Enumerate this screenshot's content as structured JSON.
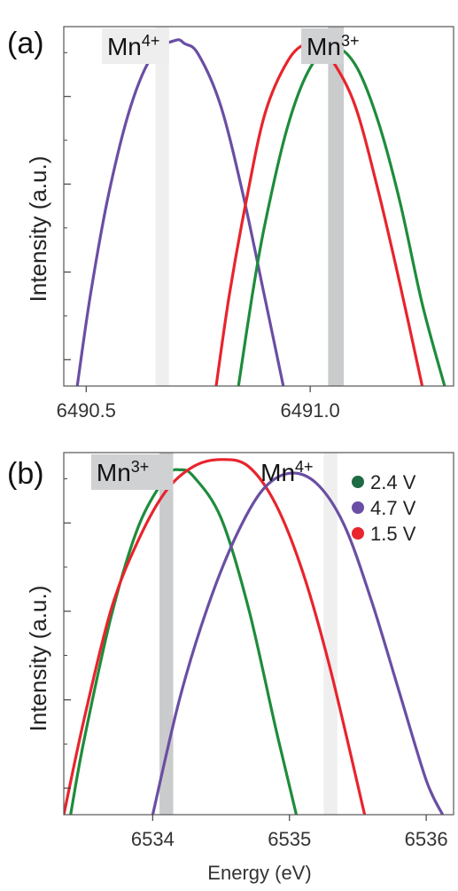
{
  "figure": {
    "xlabel": "Energy (eV)"
  },
  "chart_data": [
    {
      "type": "line",
      "panel_label": "(a)",
      "xlabel": "",
      "ylabel": "Intensity (a.u.)",
      "xlim": [
        6490.45,
        6491.32
      ],
      "ylim": [
        0,
        1.05
      ],
      "xticks": [
        6490.5,
        6491.0
      ],
      "xtick_labels": [
        "6490.5",
        "6491.0"
      ],
      "yticks": [
        0.077,
        0.333,
        0.59,
        0.846
      ],
      "yticks_minor": [
        0.205,
        0.462,
        0.718,
        0.974
      ],
      "legend": null,
      "bands": [
        {
          "x0": 6490.655,
          "x1": 6490.685,
          "color": "#efefef",
          "label": "Mn",
          "sup": "4+",
          "label_x": 6490.535,
          "label_bg": "#eeeeee"
        },
        {
          "x0": 6491.04,
          "x1": 6491.075,
          "color": "#c9cbcd",
          "label": "Mn",
          "sup": "3+",
          "label_x": 6490.98,
          "label_bg": "#cfd1d3"
        }
      ],
      "series": [
        {
          "color": "#6a4ea3",
          "x": [
            6490.48,
            6490.51,
            6490.55,
            6490.6,
            6490.65,
            6490.7,
            6490.72,
            6490.75,
            6490.8,
            6490.85,
            6490.9,
            6490.94
          ],
          "y": [
            0.0,
            0.27,
            0.56,
            0.82,
            0.97,
            1.01,
            1.0,
            0.97,
            0.82,
            0.56,
            0.25,
            0.0
          ]
        },
        {
          "color": "#e8242c",
          "x": [
            6490.79,
            6490.82,
            6490.86,
            6490.9,
            6490.95,
            6490.99,
            6491.02,
            6491.05,
            6491.1,
            6491.15,
            6491.2,
            6491.25
          ],
          "y": [
            0.0,
            0.27,
            0.56,
            0.8,
            0.95,
            1.0,
            0.99,
            0.95,
            0.82,
            0.58,
            0.3,
            0.0
          ]
        },
        {
          "color": "#1e8c3c",
          "x": [
            6490.84,
            6490.87,
            6490.9,
            6490.95,
            6491.0,
            6491.05,
            6491.1,
            6491.15,
            6491.2,
            6491.25,
            6491.3
          ],
          "y": [
            0.0,
            0.26,
            0.48,
            0.76,
            0.93,
            0.99,
            0.94,
            0.78,
            0.54,
            0.24,
            0.0
          ]
        }
      ]
    },
    {
      "type": "line",
      "panel_label": "(b)",
      "xlabel": "",
      "ylabel": "Intensity (a.u.)",
      "xlim": [
        6533.35,
        6536.2
      ],
      "ylim": [
        0,
        1.05
      ],
      "xticks": [
        6534,
        6535,
        6536
      ],
      "xtick_labels": [
        "6534",
        "6535",
        "6536"
      ],
      "yticks": [
        0.077,
        0.333,
        0.59,
        0.846
      ],
      "yticks_minor": [
        0.205,
        0.462,
        0.718,
        0.974
      ],
      "legend": {
        "placement": "top-right",
        "entries": [
          {
            "label": "2.4 V",
            "color": "#1e6b45"
          },
          {
            "label": "4.7 V",
            "color": "#6a4ea3"
          },
          {
            "label": "1.5 V",
            "color": "#e8242c"
          }
        ]
      },
      "bands": [
        {
          "x0": 6534.05,
          "x1": 6534.15,
          "color": "#c9cbcd",
          "label": "Mn",
          "sup": "3+",
          "label_x": 6533.55,
          "label_bg": "#cfd1d3"
        },
        {
          "x0": 6535.25,
          "x1": 6535.35,
          "color": "#efefef",
          "label": "Mn",
          "sup": "4+",
          "label_x": 6534.75,
          "label_bg": null
        }
      ],
      "series": [
        {
          "color": "#1e8c3c",
          "x": [
            6533.4,
            6533.5,
            6533.7,
            6533.9,
            6534.1,
            6534.2,
            6534.3,
            6534.5,
            6534.7,
            6534.9,
            6535.05
          ],
          "y": [
            0.0,
            0.22,
            0.58,
            0.84,
            0.98,
            1.0,
            0.98,
            0.86,
            0.6,
            0.25,
            0.0
          ]
        },
        {
          "color": "#e8242c",
          "x": [
            6533.35,
            6533.5,
            6533.7,
            6533.9,
            6534.1,
            6534.3,
            6534.5,
            6534.7,
            6534.9,
            6535.1,
            6535.3,
            6535.55
          ],
          "y": [
            0.0,
            0.28,
            0.6,
            0.8,
            0.94,
            1.01,
            1.03,
            1.01,
            0.9,
            0.7,
            0.42,
            0.0
          ]
        },
        {
          "color": "#6a4ea3",
          "x": [
            6534.0,
            6534.2,
            6534.4,
            6534.6,
            6534.8,
            6535.0,
            6535.2,
            6535.4,
            6535.6,
            6535.8,
            6536.0,
            6536.12
          ],
          "y": [
            0.0,
            0.34,
            0.6,
            0.8,
            0.94,
            0.99,
            0.96,
            0.84,
            0.62,
            0.36,
            0.1,
            0.0
          ]
        }
      ]
    }
  ]
}
